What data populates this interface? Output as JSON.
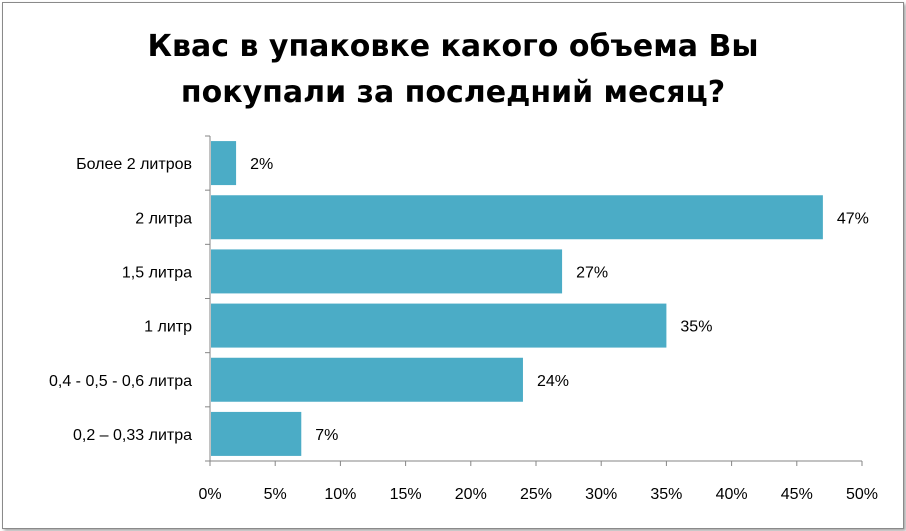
{
  "chart_data": {
    "type": "bar",
    "orientation": "horizontal",
    "title_lines": [
      "Квас  в упаковке какого объема Вы",
      "покупали за последний месяц?"
    ],
    "categories": [
      "Более 2 литров",
      "2 литра",
      "1,5 литра",
      "1 литр",
      "0,4 - 0,5 - 0,6 литра",
      "0,2 – 0,33 литра"
    ],
    "values": [
      2,
      47,
      27,
      35,
      24,
      7
    ],
    "data_labels": [
      "2%",
      "47%",
      "27%",
      "35%",
      "24%",
      "7%"
    ],
    "x_ticks": [
      "0%",
      "5%",
      "10%",
      "15%",
      "20%",
      "25%",
      "30%",
      "35%",
      "40%",
      "45%",
      "50%"
    ],
    "xlim": [
      0,
      50
    ],
    "grid": false,
    "legend": "none",
    "bar_color": "#4bacc6"
  }
}
